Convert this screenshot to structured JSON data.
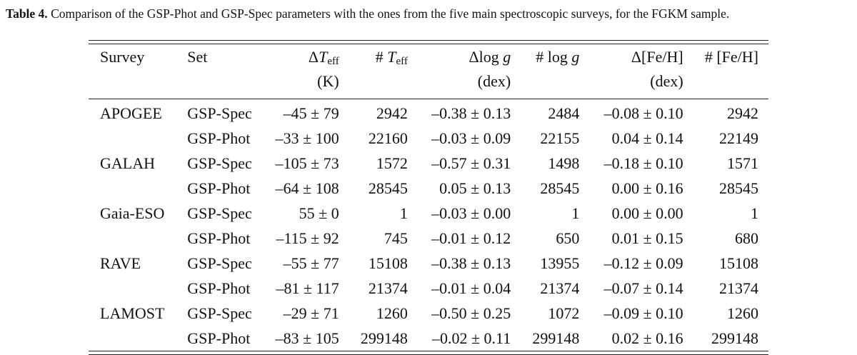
{
  "caption": {
    "label": "Table 4.",
    "text": " Comparison of the GSP-Phot and GSP-Spec parameters with the ones from the five main spectroscopic surveys, for the FGKM sample."
  },
  "table": {
    "header": {
      "survey": "Survey",
      "set": "Set",
      "dteff_delta": "Δ",
      "dteff_sym": "T",
      "dteff_sub": "eff",
      "dteff_unit": "(K)",
      "nteff_hash": "# ",
      "nteff_sym": "T",
      "nteff_sub": "eff",
      "dlogg_prefix": "Δlog ",
      "dlogg_sym": "g",
      "dlogg_unit": "(dex)",
      "nlogg_prefix": "# log ",
      "nlogg_sym": "g",
      "dfeh": "Δ[Fe/H]",
      "dfeh_unit": "(dex)",
      "nfeh": "# [Fe/H]"
    },
    "rows": [
      {
        "survey": "APOGEE",
        "set": "GSP-Spec",
        "dteff": "–45 ± 79",
        "nteff": "2942",
        "dlogg": "–0.38 ± 0.13",
        "nlogg": "2484",
        "dfeh": "–0.08 ± 0.10",
        "nfeh": "2942"
      },
      {
        "survey": "",
        "set": "GSP-Phot",
        "dteff": "–33 ± 100",
        "nteff": "22160",
        "dlogg": "–0.03 ± 0.09",
        "nlogg": "22155",
        "dfeh": "0.04 ± 0.14",
        "nfeh": "22149"
      },
      {
        "survey": "GALAH",
        "set": "GSP-Spec",
        "dteff": "–105 ± 73",
        "nteff": "1572",
        "dlogg": "–0.57 ± 0.31",
        "nlogg": "1498",
        "dfeh": "–0.18 ± 0.10",
        "nfeh": "1571"
      },
      {
        "survey": "",
        "set": "GSP-Phot",
        "dteff": "–64 ± 108",
        "nteff": "28545",
        "dlogg": "0.05 ± 0.13",
        "nlogg": "28545",
        "dfeh": "0.00 ± 0.16",
        "nfeh": "28545"
      },
      {
        "survey": "Gaia-ESO",
        "set": "GSP-Spec",
        "dteff": "55 ± 0",
        "nteff": "1",
        "dlogg": "–0.03 ± 0.00",
        "nlogg": "1",
        "dfeh": "0.00 ± 0.00",
        "nfeh": "1"
      },
      {
        "survey": "",
        "set": "GSP-Phot",
        "dteff": "–115 ± 92",
        "nteff": "745",
        "dlogg": "–0.01 ± 0.12",
        "nlogg": "650",
        "dfeh": "0.01 ± 0.15",
        "nfeh": "680"
      },
      {
        "survey": "RAVE",
        "set": "GSP-Spec",
        "dteff": "–55 ± 77",
        "nteff": "15108",
        "dlogg": "–0.38 ± 0.13",
        "nlogg": "13955",
        "dfeh": "–0.12 ± 0.09",
        "nfeh": "15108"
      },
      {
        "survey": "",
        "set": "GSP-Phot",
        "dteff": "–81 ± 117",
        "nteff": "21374",
        "dlogg": "–0.01 ± 0.04",
        "nlogg": "21374",
        "dfeh": "–0.07 ± 0.14",
        "nfeh": "21374"
      },
      {
        "survey": "LAMOST",
        "set": "GSP-Spec",
        "dteff": "–29 ± 71",
        "nteff": "1260",
        "dlogg": "–0.50 ± 0.25",
        "nlogg": "1072",
        "dfeh": "–0.09 ± 0.10",
        "nfeh": "1260"
      },
      {
        "survey": "",
        "set": "GSP-Phot",
        "dteff": "–83 ± 105",
        "nteff": "299148",
        "dlogg": "–0.02 ± 0.11",
        "nlogg": "299148",
        "dfeh": "0.02 ± 0.16",
        "nfeh": "299148"
      }
    ]
  }
}
